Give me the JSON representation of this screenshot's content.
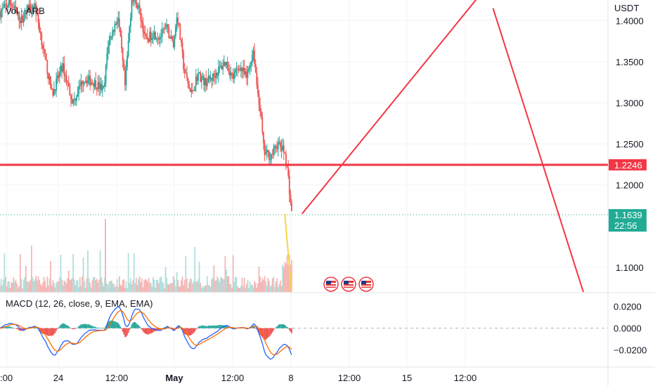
{
  "chart_data": [
    {
      "type": "candlestick",
      "title": "Vol · ARB",
      "currency": "USDT",
      "price_axis": {
        "ylim": [
          1.07,
          1.425
        ],
        "ticks": [
          "1.4000",
          "1.3500",
          "1.3000",
          "1.2500",
          "1.2000",
          "1.1000"
        ],
        "tick_values": [
          1.4,
          1.35,
          1.3,
          1.25,
          1.2,
          1.1
        ]
      },
      "time_axis": {
        "ticks": [
          ":00",
          "24",
          "12:00",
          "May",
          "12:00",
          "8",
          "12:00",
          "15",
          "12:00"
        ],
        "bold": [
          false,
          false,
          false,
          true,
          false,
          false,
          false,
          false,
          false
        ]
      },
      "colors": {
        "up": "#26a69a",
        "down": "#ef5350",
        "volume_up": "#b2dfdb",
        "volume_down": "#f5b7b5"
      },
      "price_path": [
        [
          0,
          1.41
        ],
        [
          3,
          1.422
        ],
        [
          6,
          1.4
        ],
        [
          8,
          1.415
        ],
        [
          10,
          1.42
        ],
        [
          15,
          1.31
        ],
        [
          18,
          1.345
        ],
        [
          21,
          1.3
        ],
        [
          24,
          1.33
        ],
        [
          27,
          1.325
        ],
        [
          30,
          1.315
        ],
        [
          31,
          1.37
        ],
        [
          34,
          1.405
        ],
        [
          36,
          1.32
        ],
        [
          38,
          1.43
        ],
        [
          40,
          1.415
        ],
        [
          42,
          1.375
        ],
        [
          44,
          1.385
        ],
        [
          46,
          1.38
        ],
        [
          48,
          1.39
        ],
        [
          50,
          1.37
        ],
        [
          51,
          1.41
        ],
        [
          53,
          1.34
        ],
        [
          55,
          1.31
        ],
        [
          57,
          1.335
        ],
        [
          59,
          1.325
        ],
        [
          61,
          1.33
        ],
        [
          63,
          1.34
        ],
        [
          65,
          1.35
        ],
        [
          67,
          1.33
        ],
        [
          69,
          1.345
        ],
        [
          71,
          1.33
        ],
        [
          73,
          1.365
        ],
        [
          74,
          1.32
        ],
        [
          75,
          1.29
        ],
        [
          76,
          1.24
        ],
        [
          78,
          1.235
        ],
        [
          80,
          1.25
        ],
        [
          82,
          1.24
        ],
        [
          83,
          1.21
        ],
        [
          84,
          1.165
        ]
      ],
      "horizontal_levels": [
        {
          "label": "1.2246",
          "value": 1.2246,
          "color": "#f23645"
        },
        {
          "label": "1.1639",
          "value": 1.1639,
          "color": "#22ab94",
          "countdown": "22:56"
        }
      ],
      "drawings": [
        {
          "kind": "trend-line",
          "color": "#f23645",
          "from": [
            87,
            1.165
          ],
          "to": [
            138,
            1.43
          ]
        },
        {
          "kind": "trend-line",
          "color": "#f23645",
          "from": [
            142,
            1.415
          ],
          "to": [
            168,
            1.07
          ]
        },
        {
          "kind": "trend-line",
          "color": "#f5d742",
          "from": [
            82,
            1.165
          ],
          "to": [
            84,
            1.07
          ]
        }
      ],
      "events": [
        "us-flag-icon",
        "us-flag-icon",
        "us-flag-icon"
      ]
    },
    {
      "type": "line",
      "title": "MACD (12, 26, close, 9, EMA, EMA)",
      "ylim": [
        -0.035,
        0.032
      ],
      "ticks": [
        "0.0200",
        "0.0000",
        "−0.0200"
      ],
      "tick_values": [
        0.02,
        0.0,
        -0.02
      ],
      "series": [
        {
          "name": "MACD",
          "color": "#2962ff"
        },
        {
          "name": "Signal",
          "color": "#ff6d00"
        }
      ],
      "histogram": "diverging",
      "zero_line": "dashed"
    }
  ]
}
